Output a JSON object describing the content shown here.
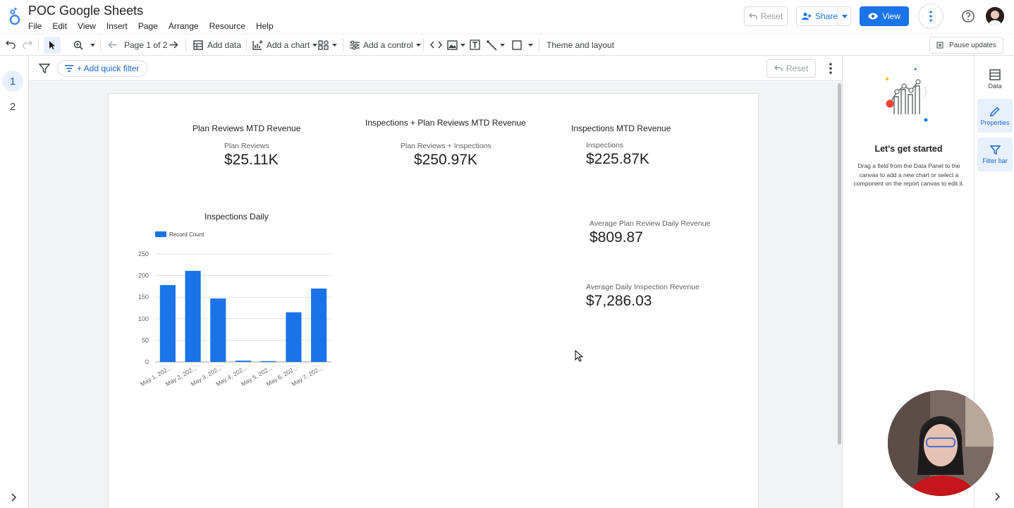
{
  "header": {
    "title": "POC Google Sheets",
    "menu": [
      "File",
      "Edit",
      "View",
      "Insert",
      "Page",
      "Arrange",
      "Resource",
      "Help"
    ],
    "reset_label": "Reset",
    "share_label": "Share",
    "view_label": "View"
  },
  "toolbar": {
    "page_indicator": "Page 1 of 2",
    "add_data": "Add data",
    "add_chart": "Add a chart",
    "add_control": "Add a control",
    "theme_layout": "Theme and layout",
    "pause_updates": "Pause updates"
  },
  "pages": [
    "1",
    "2"
  ],
  "filter_bar": {
    "add_quick_filter": "+ Add quick filter",
    "reset_label": "Reset"
  },
  "scorecards": {
    "plan_reviews": {
      "title": "Plan Reviews MTD Revenue",
      "label": "Plan Reviews",
      "value": "$25.11K"
    },
    "combined": {
      "title": "Inspections + Plan Reviews MTD Revenue",
      "label": "Plan Reviews + Inspections",
      "value": "$250.97K"
    },
    "inspections": {
      "title": "Inspections MTD Revenue",
      "label": "Inspections",
      "value": "$225.87K"
    },
    "avg_plan_review": {
      "label": "Average Plan Review Daily Revenue",
      "value": "$809.87"
    },
    "avg_inspection": {
      "label": "Average Daily Inspection Revenue",
      "value": "$7,286.03"
    }
  },
  "chart_data": {
    "type": "bar",
    "title": "Inspections Daily",
    "categories": [
      "May 1, 202...",
      "May 2, 202...",
      "May 3, 202...",
      "May 4, 202...",
      "May 5, 202...",
      "May 6, 202...",
      "May 7, 202..."
    ],
    "series": [
      {
        "name": "Record Count",
        "values": [
          178,
          211,
          147,
          3,
          2,
          115,
          170
        ],
        "color": "#1a73e8"
      }
    ],
    "yticks": [
      0,
      50,
      100,
      150,
      200,
      250
    ],
    "ylim": [
      0,
      250
    ],
    "grid": true,
    "legend": "top-left"
  },
  "right_panel": {
    "heading": "Let's get started",
    "description": "Drag a field from the Data Panel to the canvas to add a new chart or select a component on the report canvas to edit it."
  },
  "side_tabs": {
    "data": "Data",
    "properties": "Properties",
    "filter_bar": "Filter bar"
  },
  "colors": {
    "accent": "#1a73e8",
    "selected_bg": "#e8f0fe"
  }
}
